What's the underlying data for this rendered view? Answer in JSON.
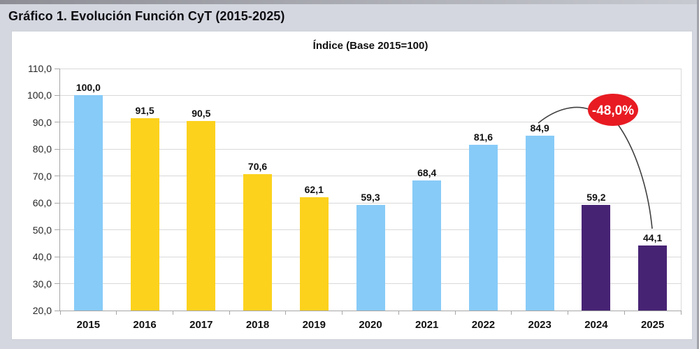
{
  "window": {
    "title": "Gráfico 1. Evolución Función CyT (2015-2025)"
  },
  "colors": {
    "page_bg": "#d4d7df",
    "panel_bg": "#ffffff",
    "panel_border": "#ccd0d8",
    "grid": "#d9d9d9",
    "axis": "#a6a6a6",
    "blue": "#87cbf8",
    "yellow": "#fcd21d",
    "purple": "#472374",
    "annotation_red": "#e81b22",
    "annotation_text": "#ffffff",
    "annotation_line": "#3f3f3f",
    "text": "#111111"
  },
  "chart_data": {
    "type": "bar",
    "title": "Índice (Base 2015=100)",
    "categories": [
      "2015",
      "2016",
      "2017",
      "2018",
      "2019",
      "2020",
      "2021",
      "2022",
      "2023",
      "2024",
      "2025"
    ],
    "values": [
      100.0,
      91.5,
      90.5,
      70.6,
      62.1,
      59.3,
      68.4,
      81.6,
      84.9,
      59.2,
      44.1
    ],
    "value_labels": [
      "100,0",
      "91,5",
      "90,5",
      "70,6",
      "62,1",
      "59,3",
      "68,4",
      "81,6",
      "84,9",
      "59,2",
      "44,1"
    ],
    "bar_color_keys": [
      "blue",
      "yellow",
      "yellow",
      "yellow",
      "yellow",
      "blue",
      "blue",
      "blue",
      "blue",
      "purple",
      "purple"
    ],
    "xlabel": "",
    "ylabel": "",
    "ylim": [
      20,
      110
    ],
    "ytick_step": 10,
    "ytick_labels_top_to_bottom": [
      "110,0",
      "100,0",
      "90,0",
      "80,0",
      "70,0",
      "60,0",
      "50,0",
      "40,0",
      "30,0",
      "20,0"
    ],
    "grid": true,
    "legend": "none",
    "annotation": {
      "label": "-48,0%",
      "meaning": "percent change from 2023 to 2025",
      "from_category": "2023",
      "to_category": "2025"
    }
  }
}
